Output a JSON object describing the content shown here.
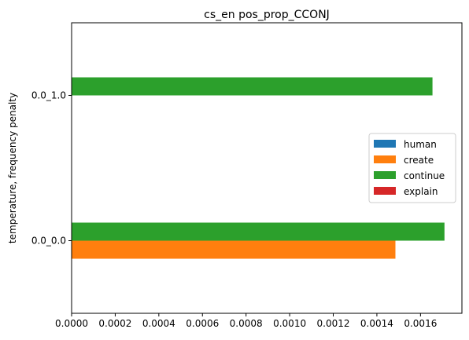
{
  "chart_data": {
    "type": "bar",
    "orientation": "horizontal",
    "title": "cs_en pos_prop_CCONJ",
    "ylabel": "temperature, frequency penalty",
    "xlabel": "",
    "categories": [
      "0.0_0.0",
      "0.0_1.0"
    ],
    "series": [
      {
        "name": "human",
        "color": "#1f77b4",
        "values": [
          0,
          0
        ]
      },
      {
        "name": "create",
        "color": "#ff7f0e",
        "values": [
          0.001485,
          0
        ]
      },
      {
        "name": "continue",
        "color": "#2ca02c",
        "values": [
          0.00171,
          0.001655
        ]
      },
      {
        "name": "explain",
        "color": "#d62728",
        "values": [
          0,
          0
        ]
      }
    ],
    "xlim": [
      0,
      0.00179
    ],
    "xticks": [
      "0.0000",
      "0.0002",
      "0.0004",
      "0.0006",
      "0.0008",
      "0.0010",
      "0.0012",
      "0.0014",
      "0.0016"
    ],
    "grid": false,
    "legend_position": "center-right"
  }
}
